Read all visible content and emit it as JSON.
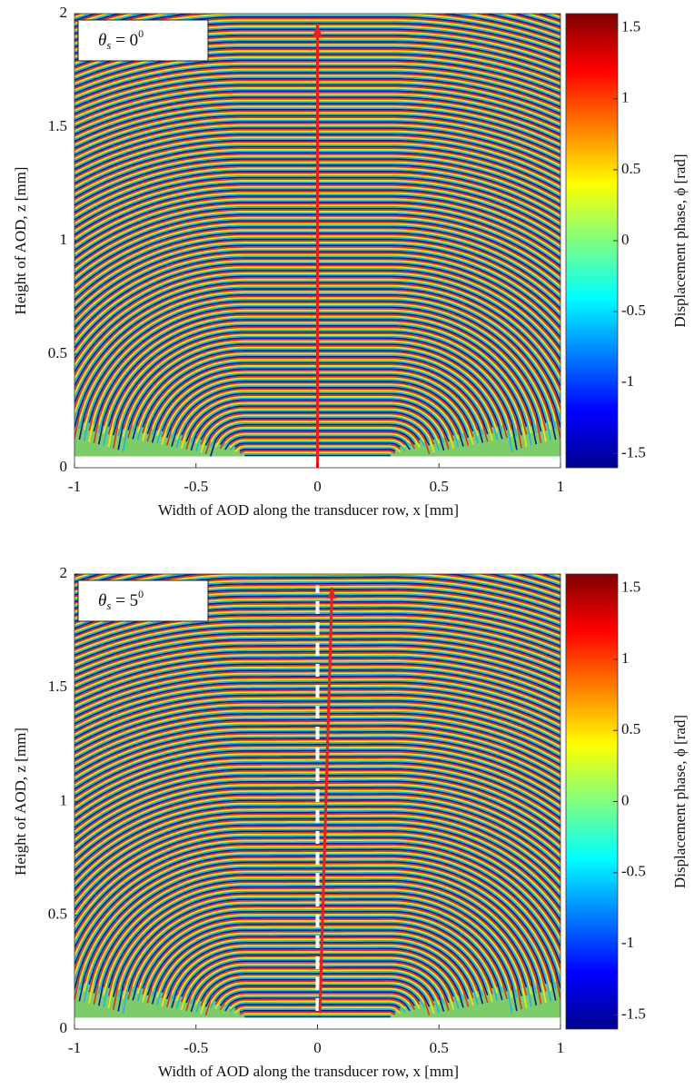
{
  "chart_data": [
    {
      "type": "heatmap",
      "annotation": {
        "base": "θ",
        "sub": "s",
        "text": " = 0",
        "sup": "0"
      },
      "xlabel": "Width of AOD along the transducer row, x [mm]",
      "ylabel": "Height of AOD, z [mm]",
      "xlim": [
        -1,
        1
      ],
      "ylim": [
        0,
        2
      ],
      "xticks": [
        -1,
        -0.5,
        0,
        0.5,
        1
      ],
      "yticks": [
        0,
        0.5,
        1,
        1.5,
        2
      ],
      "colorbar": {
        "label": "Displacement phase, ϕ [rad]",
        "lim": [
          -1.6,
          1.6
        ],
        "ticks": [
          -1.5,
          -1,
          -0.5,
          0,
          0.5,
          1,
          1.5
        ]
      },
      "arrow": {
        "color": "#e8201a",
        "x": [
          0,
          0
        ],
        "y": [
          0,
          1.95
        ]
      }
    },
    {
      "type": "heatmap",
      "annotation": {
        "base": "θ",
        "sub": "s",
        "text": " = 5",
        "sup": "0"
      },
      "xlabel": "Width of AOD along the transducer row, x [mm]",
      "ylabel": "Height of AOD, z [mm]",
      "xlim": [
        -1,
        1
      ],
      "ylim": [
        0,
        2
      ],
      "xticks": [
        -1,
        -0.5,
        0,
        0.5,
        1
      ],
      "yticks": [
        0,
        0.5,
        1,
        1.5,
        2
      ],
      "colorbar": {
        "label": "Displacement phase, ϕ [rad]",
        "lim": [
          -1.6,
          1.6
        ],
        "ticks": [
          -1.5,
          -1,
          -0.5,
          0,
          0.5,
          1,
          1.5
        ]
      },
      "arrow": {
        "color": "#e8201a",
        "x": [
          0.01,
          0.06
        ],
        "y": [
          0.08,
          1.94
        ]
      },
      "reference_line": {
        "color": "#ffffff",
        "style": "dashed",
        "x": [
          0,
          0
        ],
        "y": [
          0.08,
          1.95
        ]
      }
    }
  ]
}
